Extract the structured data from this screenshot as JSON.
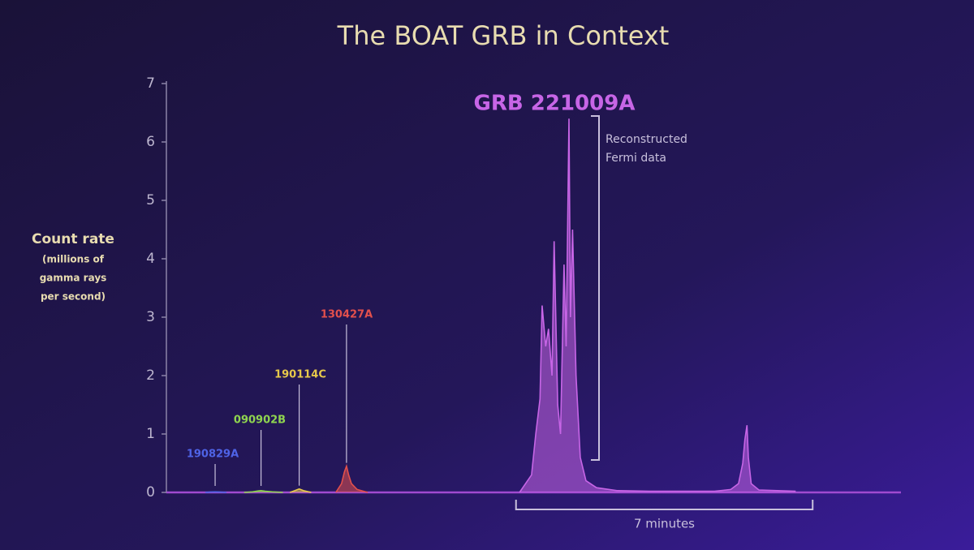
{
  "chart_data": {
    "type": "area",
    "title": "The BOAT GRB in Context",
    "y_label": "Count rate",
    "y_label_note": [
      "(millions of",
      "gamma rays",
      "per second)"
    ],
    "xlim": [
      0,
      1040
    ],
    "ylim": [
      0,
      7
    ],
    "yticks": [
      0,
      1,
      2,
      3,
      4,
      5,
      6,
      7
    ],
    "series": [
      {
        "name": "190829A",
        "color": "#4f63e6",
        "x": [
          55,
          62,
          69,
          76,
          85
        ],
        "values": [
          0,
          0.005,
          0.01,
          0.005,
          0
        ]
      },
      {
        "name": "090902B",
        "color": "#8fd44f",
        "x": [
          110,
          122,
          130,
          134,
          140,
          150,
          165
        ],
        "values": [
          0,
          0.01,
          0.025,
          0.03,
          0.02,
          0.01,
          0
        ]
      },
      {
        "name": "190114C",
        "color": "#e6c84a",
        "x": [
          175,
          182,
          188,
          194,
          205
        ],
        "values": [
          0,
          0.03,
          0.06,
          0.03,
          0
        ]
      },
      {
        "name": "130427A",
        "color": "#e2504c",
        "x": [
          240,
          248,
          252,
          255,
          258,
          262,
          270,
          285
        ],
        "values": [
          0,
          0.15,
          0.35,
          0.45,
          0.3,
          0.15,
          0.05,
          0
        ]
      },
      {
        "name": "GRB 221009A",
        "color": "#c765e6",
        "x": [
          500,
          517,
          523,
          529,
          532,
          537,
          541,
          546,
          549,
          554,
          558,
          563,
          566,
          570,
          572,
          575,
          580,
          586,
          594,
          609,
          638,
          684,
          776,
          799,
          810,
          816,
          819,
          822,
          824,
          828,
          839,
          891
        ],
        "values": [
          0,
          0.3,
          1.0,
          1.6,
          3.2,
          2.5,
          2.8,
          2.0,
          4.3,
          1.5,
          1.0,
          3.9,
          2.5,
          6.4,
          3.0,
          4.5,
          2.0,
          0.6,
          0.2,
          0.08,
          0.03,
          0.02,
          0.02,
          0.05,
          0.15,
          0.5,
          0.9,
          1.15,
          0.6,
          0.15,
          0.04,
          0.02
        ]
      }
    ],
    "reconstructed_note": [
      "Reconstructed",
      "Fermi data"
    ],
    "duration_bracket": {
      "label": "7 minutes",
      "start": 495,
      "end": 915
    }
  }
}
